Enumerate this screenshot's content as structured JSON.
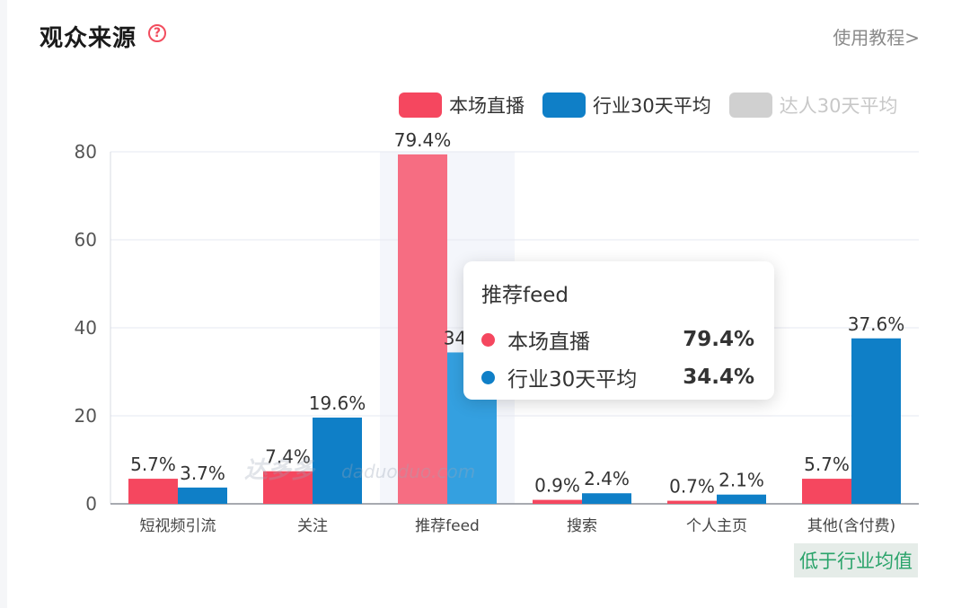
{
  "header": {
    "title": "观众来源",
    "help_icon": "question-circle-icon",
    "tutorial_link": "使用教程>"
  },
  "legend": [
    {
      "label": "本场直播",
      "color": "#f5475f",
      "active": true
    },
    {
      "label": "行业30天平均",
      "color": "#0f7fc7",
      "active": true
    },
    {
      "label": "达人30天平均",
      "color": "#d0d0d0",
      "active": false
    }
  ],
  "tooltip": {
    "title": "推荐feed",
    "rows": [
      {
        "name": "本场直播",
        "value": "79.4%",
        "color": "#f5475f"
      },
      {
        "name": "行业30天平均",
        "value": "34.4%",
        "color": "#0f7fc7"
      }
    ]
  },
  "watermark": "daduoduo.com",
  "badge": "低于行业均值",
  "chart_data": {
    "type": "bar",
    "categories": [
      "短视频引流",
      "关注",
      "推荐feed",
      "搜索",
      "个人主页",
      "其他(含付费)"
    ],
    "series": [
      {
        "name": "本场直播",
        "values": [
          5.7,
          7.4,
          79.4,
          0.9,
          0.7,
          5.7
        ],
        "labels": [
          "5.7%",
          "7.4%",
          "79.4%",
          "0.9%",
          "0.7%",
          "5.7%"
        ],
        "color": "#f5475f",
        "highlight_color": "#f66d82"
      },
      {
        "name": "行业30天平均",
        "values": [
          3.7,
          19.6,
          34.4,
          2.4,
          2.1,
          37.6
        ],
        "labels": [
          "3.7%",
          "19.6%",
          "34.4%",
          "2.4%",
          "2.1%",
          "37.6%"
        ],
        "color": "#0f7fc7",
        "highlight_color": "#34a0e0"
      }
    ],
    "hidden_series": [
      "达人30天平均"
    ],
    "yticks": [
      0,
      20,
      40,
      60,
      80
    ],
    "ylim": [
      0,
      80
    ],
    "highlighted_category": "推荐feed",
    "grid": true
  }
}
